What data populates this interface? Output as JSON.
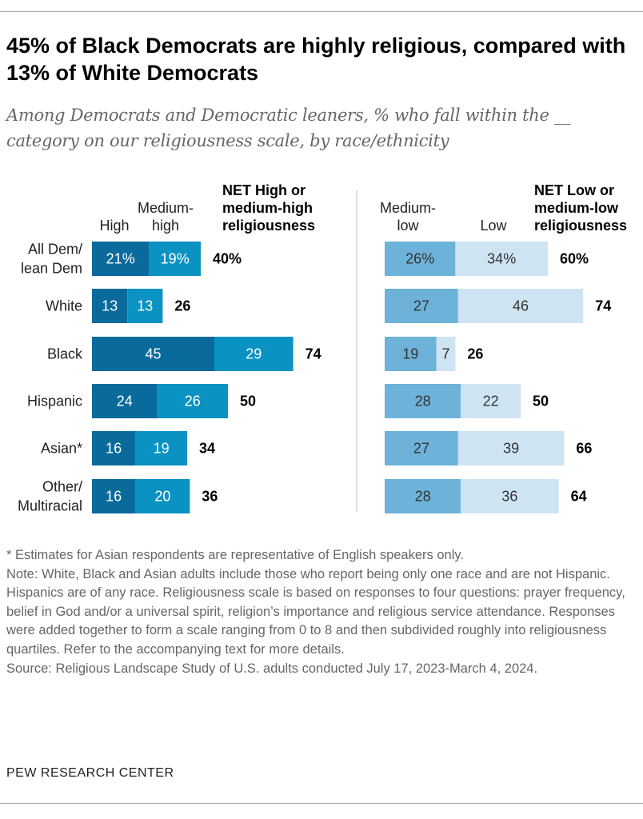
{
  "title": "45% of Black Democrats are highly religious, compared with 13% of White Democrats",
  "subtitle": "Among Democrats and Democratic leaners, % who fall within the __ category on our religiousness scale, by race/ethnicity",
  "chart_data": {
    "type": "bar",
    "orientation": "horizontal-stacked",
    "categories": [
      "All Dem/ lean Dem",
      "White",
      "Black",
      "Hispanic",
      "Asian*",
      "Other/ Multiracial"
    ],
    "left_panel": {
      "series": [
        {
          "name": "High",
          "values": [
            21,
            13,
            45,
            24,
            16,
            16
          ],
          "color": "#0b6a9c"
        },
        {
          "name": "Medium-high",
          "values": [
            19,
            13,
            29,
            26,
            19,
            20
          ],
          "color": "#0a92c2"
        }
      ],
      "net_label": "NET High or medium-high religiousness",
      "net_values": [
        40,
        26,
        74,
        50,
        34,
        36
      ]
    },
    "right_panel": {
      "series": [
        {
          "name": "Medium-low",
          "values": [
            26,
            27,
            19,
            28,
            27,
            28
          ],
          "color": "#6db2d8"
        },
        {
          "name": "Low",
          "values": [
            34,
            46,
            7,
            22,
            39,
            36
          ],
          "color": "#cfe4f2"
        }
      ],
      "net_label": "NET Low or medium-low religiousness",
      "net_values": [
        60,
        74,
        26,
        50,
        66,
        64
      ]
    },
    "first_row_suffix": "%"
  },
  "notes": [
    "* Estimates for Asian respondents are representative of English speakers only.",
    "Note: White, Black and Asian adults include those who report being only one race and are not Hispanic. Hispanics are of any race. Religiousness scale is based on responses to four questions: prayer frequency, belief in God and/or a universal spirit, religion’s importance and religious service attendance. Responses were added together to form a scale ranging from 0 to 8 and then subdivided roughly into religiousness quartiles. Refer to the accompanying text for more details.",
    "Source: Religious Landscape Study of U.S. adults conducted July 17, 2023-March 4, 2024."
  ],
  "brand": "PEW RESEARCH CENTER"
}
